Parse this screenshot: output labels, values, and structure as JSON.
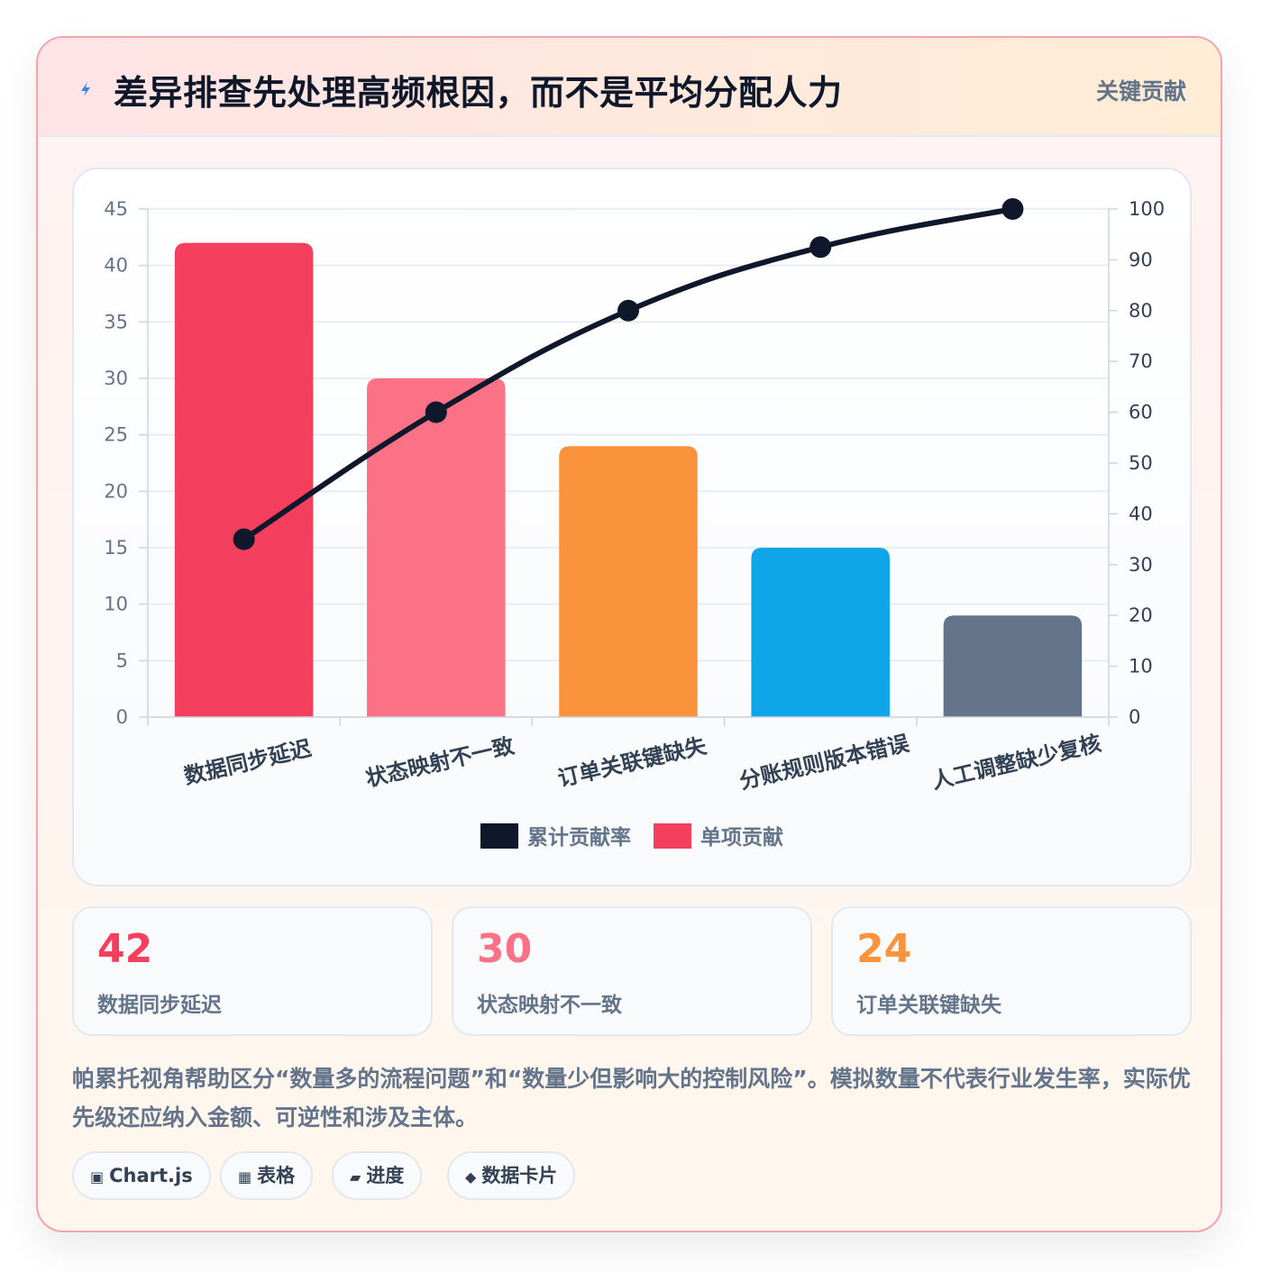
{
  "header": {
    "title": "差异排查先处理高频根因，而不是平均分配人力",
    "badge": "关键贡献",
    "icon": "bolt-icon"
  },
  "chart_data": {
    "type": "bar",
    "categories": [
      "数据同步延迟",
      "状态映射不一致",
      "订单关联键缺失",
      "分账规则版本错误",
      "人工调整缺少复核"
    ],
    "series": [
      {
        "name": "单项贡献",
        "type": "bar",
        "axis": "left",
        "values": [
          42,
          30,
          24,
          15,
          9
        ],
        "colors": [
          "#f43f5e",
          "#fb7185",
          "#fb923c",
          "#0ea5e9",
          "#64748b"
        ]
      },
      {
        "name": "累计贡献率",
        "type": "line",
        "axis": "right",
        "values": [
          35,
          60,
          80,
          92.5,
          100
        ],
        "color": "#0f172a"
      }
    ],
    "ylim_left": [
      0,
      45
    ],
    "yticks_left": [
      0,
      5,
      10,
      15,
      20,
      25,
      30,
      35,
      40,
      45
    ],
    "ylim_right": [
      0,
      100
    ],
    "yticks_right": [
      0,
      10,
      20,
      30,
      40,
      50,
      60,
      70,
      80,
      90,
      100
    ],
    "legend": [
      {
        "label": "累计贡献率",
        "color": "#0f172a"
      },
      {
        "label": "单项贡献",
        "color": "#f43f5e"
      }
    ],
    "legend_position": "bottom",
    "grid": true,
    "xlabel": "",
    "ylabel": ""
  },
  "stats": [
    {
      "value": "42",
      "label": "数据同步延迟",
      "color": "#f43f5e"
    },
    {
      "value": "30",
      "label": "状态映射不一致",
      "color": "#fb7185"
    },
    {
      "value": "24",
      "label": "订单关联键缺失",
      "color": "#fb923c"
    }
  ],
  "note": "帕累托视角帮助区分“数量多的流程问题”和“数量少但影响大的控制风险”。模拟数量不代表行业发生率，实际优先级还应纳入金额、可逆性和涉及主体。",
  "tags": [
    {
      "glyph": "▣",
      "label": "Chart.js",
      "icon": "chart-icon"
    },
    {
      "glyph": "▦",
      "label": "表格",
      "icon": "table-icon"
    },
    {
      "glyph": "▰",
      "label": "进度",
      "icon": "progress-icon"
    },
    {
      "glyph": "◆",
      "label": "数据卡片",
      "icon": "card-icon"
    }
  ]
}
